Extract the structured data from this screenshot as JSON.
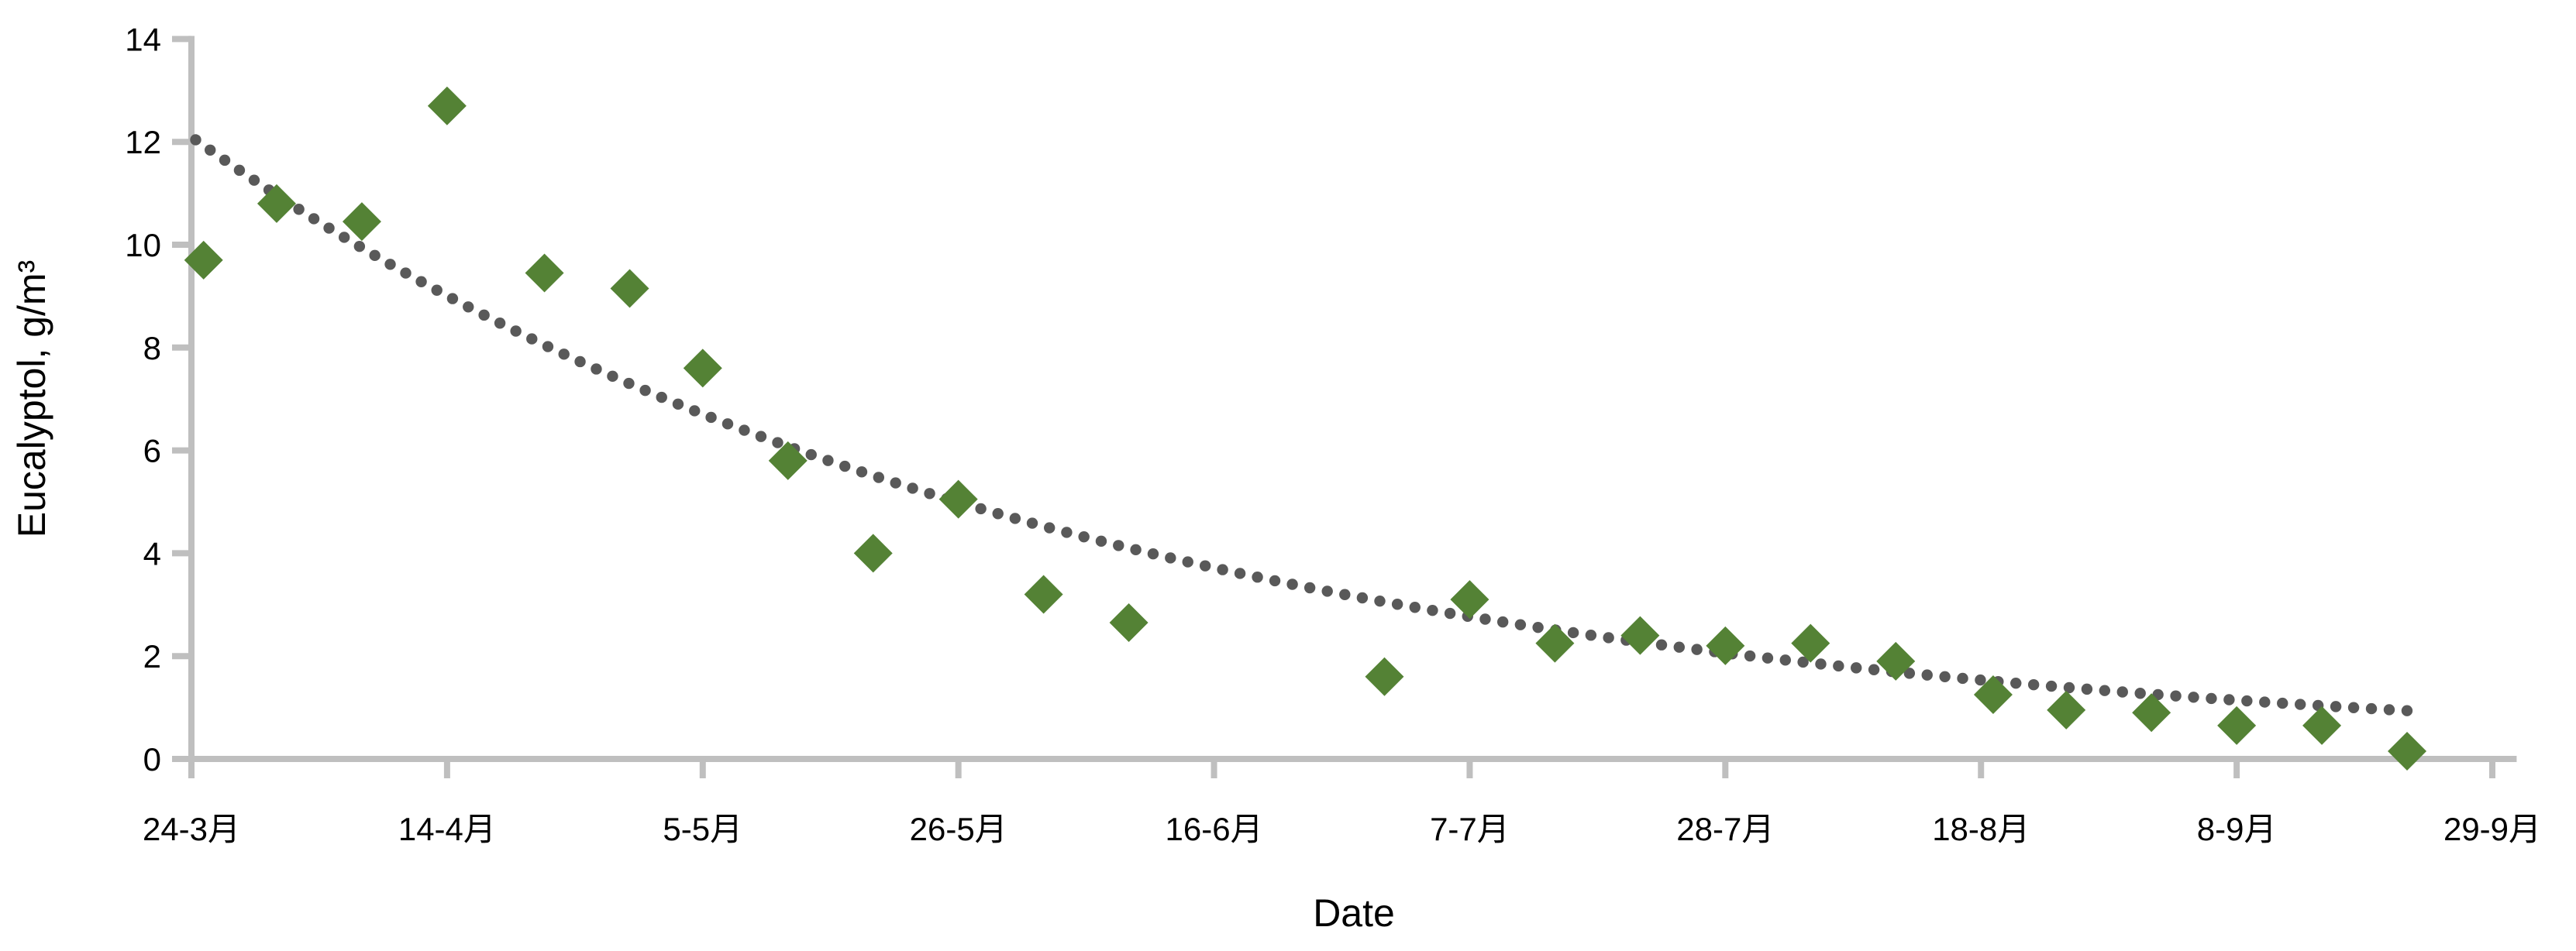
{
  "chart_data": {
    "type": "scatter",
    "title": "",
    "xlabel": "Date",
    "ylabel": "Eucalyptol, g/m³",
    "grid": false,
    "legend": "none",
    "x_axis": {
      "tick_labels": [
        "24-3月",
        "14-4月",
        "5-5月",
        "26-5月",
        "16-6月",
        "7-7月",
        "28-7月",
        "18-8月",
        "8-9月",
        "29-9月"
      ],
      "tick_days": [
        0,
        21,
        42,
        63,
        84,
        105,
        126,
        147,
        168,
        189
      ],
      "interval_days": 21,
      "axis_end_day": 191
    },
    "y_axis": {
      "ticks": [
        0,
        2,
        4,
        6,
        8,
        10,
        12,
        14
      ],
      "min": 0,
      "max": 14
    },
    "series": [
      {
        "name": "Eucalyptol",
        "marker": "diamond",
        "color": "#548235",
        "points": [
          {
            "date": "25-3月",
            "day": 1,
            "value": 9.7
          },
          {
            "date": "31-3月",
            "day": 7,
            "value": 10.8
          },
          {
            "date": "7-4月",
            "day": 14,
            "value": 10.45
          },
          {
            "date": "14-4月",
            "day": 21,
            "value": 12.7
          },
          {
            "date": "22-4月",
            "day": 29,
            "value": 9.45
          },
          {
            "date": "29-4月",
            "day": 36,
            "value": 9.15
          },
          {
            "date": "5-5月",
            "day": 42,
            "value": 7.6
          },
          {
            "date": "12-5月",
            "day": 49,
            "value": 5.8
          },
          {
            "date": "19-5月",
            "day": 56,
            "value": 4.0
          },
          {
            "date": "26-5月",
            "day": 63,
            "value": 5.05
          },
          {
            "date": "2-6月",
            "day": 70,
            "value": 3.2
          },
          {
            "date": "9-6月",
            "day": 77,
            "value": 2.65
          },
          {
            "date": "30-6月",
            "day": 98,
            "value": 1.6
          },
          {
            "date": "7-7月",
            "day": 105,
            "value": 3.1
          },
          {
            "date": "14-7月",
            "day": 112,
            "value": 2.25
          },
          {
            "date": "21-7月",
            "day": 119,
            "value": 2.4
          },
          {
            "date": "28-7月",
            "day": 126,
            "value": 2.2
          },
          {
            "date": "4-8月",
            "day": 133,
            "value": 2.25
          },
          {
            "date": "11-8月",
            "day": 140,
            "value": 1.9
          },
          {
            "date": "19-8月",
            "day": 148,
            "value": 1.25
          },
          {
            "date": "25-8月",
            "day": 154,
            "value": 0.95
          },
          {
            "date": "1-9月",
            "day": 161,
            "value": 0.9
          },
          {
            "date": "8-9月",
            "day": 168,
            "value": 0.65
          },
          {
            "date": "15-9月",
            "day": 175,
            "value": 0.65
          },
          {
            "date": "22-9月",
            "day": 182,
            "value": 0.15
          }
        ]
      }
    ],
    "trendline": {
      "style": "dotted",
      "color": "#595959",
      "model": "exponential",
      "initial_value": 12.1,
      "decay_per_day": 0.01405,
      "day_start": 0.35,
      "day_end": 182
    }
  },
  "colors": {
    "marker_green": "#548235",
    "trend_gray": "#595959",
    "axis_gray": "#BFBFBF",
    "text": "#000000",
    "background": "#FFFFFF"
  }
}
